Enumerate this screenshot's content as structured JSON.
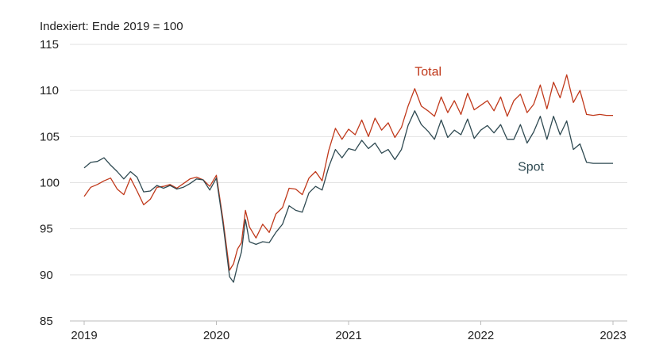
{
  "chart_data": {
    "type": "line",
    "unit_label": "Indexiert: Ende 2019 = 100",
    "ylim": [
      85,
      115
    ],
    "y_ticks": [
      85,
      90,
      95,
      100,
      105,
      110,
      115
    ],
    "x_range": [
      2019.0,
      2023.0
    ],
    "x_ticks": [
      "2019",
      "2020",
      "2021",
      "2022",
      "2023"
    ],
    "grid": "horizontal",
    "legend": "direct labels on lines",
    "series": [
      {
        "name": "Total",
        "color": "#c0391b",
        "x": [
          2019.0,
          2019.05,
          2019.1,
          2019.15,
          2019.2,
          2019.25,
          2019.3,
          2019.35,
          2019.4,
          2019.45,
          2019.5,
          2019.55,
          2019.6,
          2019.65,
          2019.7,
          2019.75,
          2019.8,
          2019.85,
          2019.9,
          2019.95,
          2020.0,
          2020.05,
          2020.1,
          2020.13,
          2020.16,
          2020.19,
          2020.22,
          2020.25,
          2020.3,
          2020.35,
          2020.4,
          2020.45,
          2020.5,
          2020.55,
          2020.6,
          2020.65,
          2020.7,
          2020.75,
          2020.8,
          2020.85,
          2020.9,
          2020.95,
          2021.0,
          2021.05,
          2021.1,
          2021.15,
          2021.2,
          2021.25,
          2021.3,
          2021.35,
          2021.4,
          2021.45,
          2021.5,
          2021.55,
          2021.6,
          2021.65,
          2021.7,
          2021.75,
          2021.8,
          2021.85,
          2021.9,
          2021.95,
          2022.0,
          2022.05,
          2022.1,
          2022.15,
          2022.2,
          2022.25,
          2022.3,
          2022.35,
          2022.4,
          2022.45,
          2022.5,
          2022.55,
          2022.6,
          2022.65,
          2022.7,
          2022.75,
          2022.8,
          2022.85,
          2022.9,
          2022.95,
          2023.0
        ],
        "values": [
          98.5,
          99.5,
          99.8,
          100.2,
          100.5,
          99.3,
          98.7,
          100.5,
          99.1,
          97.6,
          98.2,
          99.5,
          99.6,
          99.8,
          99.4,
          99.9,
          100.4,
          100.6,
          100.3,
          99.6,
          100.8,
          96.0,
          90.5,
          91.2,
          92.8,
          93.5,
          97.0,
          95.2,
          94.0,
          95.5,
          94.6,
          96.6,
          97.3,
          99.4,
          99.3,
          98.7,
          100.5,
          101.2,
          100.2,
          103.5,
          105.9,
          104.7,
          105.8,
          105.2,
          106.8,
          105.0,
          107.0,
          105.7,
          106.5,
          104.9,
          106.0,
          108.3,
          110.2,
          108.3,
          107.8,
          107.2,
          109.3,
          107.6,
          108.9,
          107.4,
          109.7,
          107.9,
          108.4,
          108.9,
          107.8,
          109.3,
          107.2,
          108.9,
          109.6,
          107.6,
          108.5,
          110.6,
          108.0,
          110.9,
          109.2,
          111.7,
          108.7,
          110.0,
          107.4,
          107.3,
          107.4,
          107.3,
          107.3
        ]
      },
      {
        "name": "Spot",
        "color": "#2f4a52",
        "x": [
          2019.0,
          2019.05,
          2019.1,
          2019.15,
          2019.2,
          2019.25,
          2019.3,
          2019.35,
          2019.4,
          2019.45,
          2019.5,
          2019.55,
          2019.6,
          2019.65,
          2019.7,
          2019.75,
          2019.8,
          2019.85,
          2019.9,
          2019.95,
          2020.0,
          2020.05,
          2020.1,
          2020.13,
          2020.16,
          2020.19,
          2020.22,
          2020.25,
          2020.3,
          2020.35,
          2020.4,
          2020.45,
          2020.5,
          2020.55,
          2020.6,
          2020.65,
          2020.7,
          2020.75,
          2020.8,
          2020.85,
          2020.9,
          2020.95,
          2021.0,
          2021.05,
          2021.1,
          2021.15,
          2021.2,
          2021.25,
          2021.3,
          2021.35,
          2021.4,
          2021.45,
          2021.5,
          2021.55,
          2021.6,
          2021.65,
          2021.7,
          2021.75,
          2021.8,
          2021.85,
          2021.9,
          2021.95,
          2022.0,
          2022.05,
          2022.1,
          2022.15,
          2022.2,
          2022.25,
          2022.3,
          2022.35,
          2022.4,
          2022.45,
          2022.5,
          2022.55,
          2022.6,
          2022.65,
          2022.7,
          2022.75,
          2022.8,
          2022.85,
          2022.9,
          2022.95,
          2023.0
        ],
        "values": [
          101.6,
          102.2,
          102.3,
          102.7,
          101.9,
          101.2,
          100.4,
          101.2,
          100.6,
          99.0,
          99.1,
          99.7,
          99.4,
          99.7,
          99.3,
          99.5,
          99.9,
          100.4,
          100.3,
          99.2,
          100.5,
          95.6,
          89.8,
          89.2,
          91.0,
          92.5,
          96.0,
          93.6,
          93.3,
          93.6,
          93.5,
          94.6,
          95.5,
          97.5,
          97.0,
          96.8,
          98.9,
          99.6,
          99.2,
          101.7,
          103.6,
          102.7,
          103.7,
          103.5,
          104.6,
          103.7,
          104.3,
          103.2,
          103.6,
          102.5,
          103.6,
          106.2,
          107.8,
          106.3,
          105.6,
          104.7,
          106.8,
          104.9,
          105.7,
          105.2,
          106.9,
          104.8,
          105.7,
          106.2,
          105.4,
          106.3,
          104.7,
          104.7,
          106.3,
          104.3,
          105.5,
          107.2,
          104.7,
          107.2,
          105.2,
          106.7,
          103.6,
          104.2,
          102.2,
          102.1,
          102.1,
          102.1,
          102.1
        ]
      }
    ]
  }
}
